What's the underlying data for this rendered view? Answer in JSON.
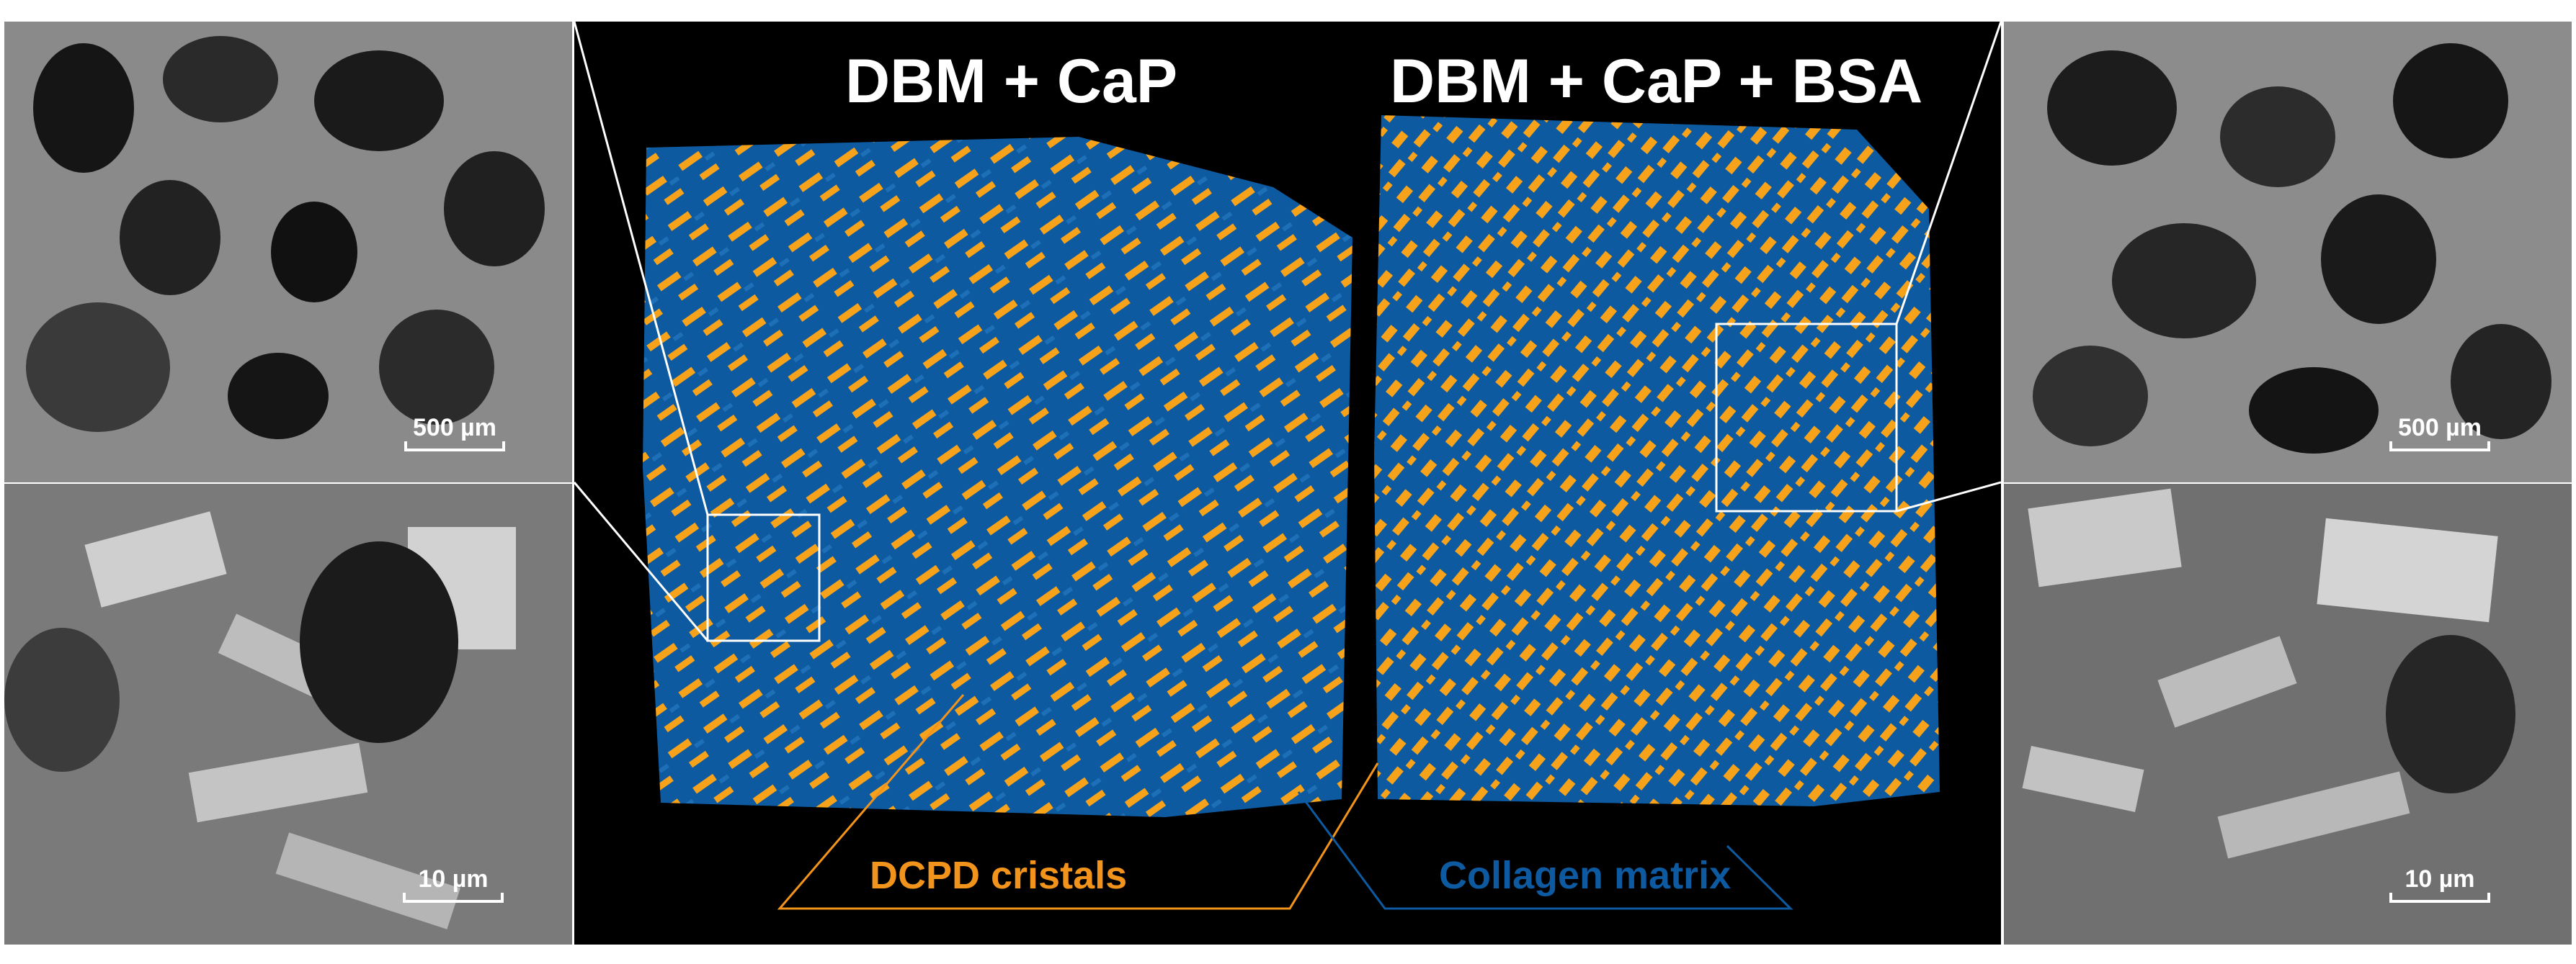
{
  "titles": {
    "left_sample": "DBM + CaP",
    "right_sample": "DBM + CaP + BSA"
  },
  "scale_bars": {
    "top_left": "500 µm",
    "bottom_left": "10 µm",
    "top_right": "500 µm",
    "bottom_right": "10 µm"
  },
  "legend": {
    "crystals": {
      "text": "DCPD cristals",
      "color": "#f2941c"
    },
    "matrix": {
      "text": "Collagen matrix",
      "color": "#0d5aa0"
    }
  },
  "colors": {
    "crystal_orange": "#f7a21b",
    "collagen_blue": "#0d5aa0",
    "background": "#000000",
    "sem_gray": "#6e6e6e"
  }
}
